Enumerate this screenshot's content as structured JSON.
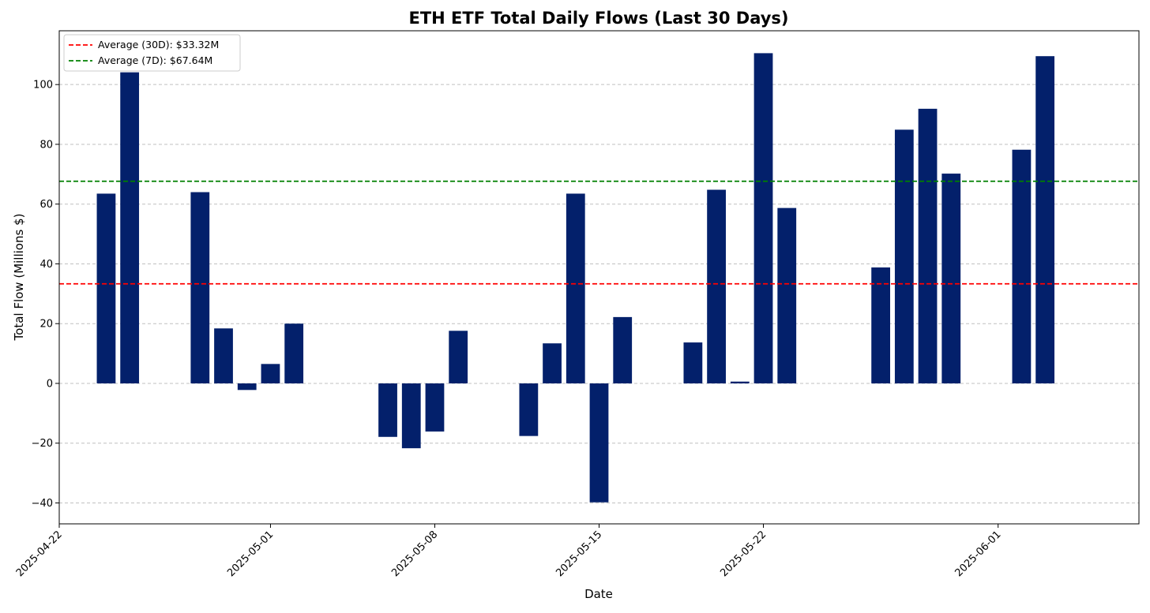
{
  "chart_data": {
    "type": "bar",
    "title": "ETH ETF Total Daily Flows (Last 30 Days)",
    "xlabel": "Date",
    "ylabel": "Total Flow (Millions $)",
    "xlim": [
      "2025-04-22",
      "2025-06-07"
    ],
    "ylim": [
      -47,
      118
    ],
    "yticks": [
      -40,
      -20,
      0,
      20,
      40,
      60,
      80,
      100
    ],
    "xticks": [
      "2025-04-22",
      "2025-05-01",
      "2025-05-08",
      "2025-05-15",
      "2025-05-22",
      "2025-06-01"
    ],
    "grid": "horizontal dashed",
    "bar_color": "#03206b",
    "series": [
      {
        "x": [
          "2025-04-24",
          "2025-04-25",
          "2025-04-28",
          "2025-04-29",
          "2025-04-30",
          "2025-05-01",
          "2025-05-02",
          "2025-05-06",
          "2025-05-07",
          "2025-05-08",
          "2025-05-09",
          "2025-05-12",
          "2025-05-13",
          "2025-05-14",
          "2025-05-15",
          "2025-05-16",
          "2025-05-19",
          "2025-05-20",
          "2025-05-21",
          "2025-05-22",
          "2025-05-23",
          "2025-05-27",
          "2025-05-28",
          "2025-05-29",
          "2025-05-30",
          "2025-06-02",
          "2025-06-03"
        ],
        "values": [
          63.5,
          104.1,
          64.0,
          18.4,
          -2.2,
          6.5,
          20.0,
          -17.9,
          -21.7,
          -16.1,
          17.6,
          -17.6,
          13.4,
          63.5,
          -39.8,
          22.2,
          13.7,
          64.8,
          0.6,
          110.5,
          58.7,
          38.8,
          84.9,
          91.9,
          70.2,
          78.2,
          109.5
        ]
      }
    ],
    "reference_lines": [
      {
        "label": "Average (30D): $33.32M",
        "value": 33.32,
        "color": "#ff0000",
        "style": "dashed"
      },
      {
        "label": "Average (7D): $67.64M",
        "value": 67.64,
        "color": "#008000",
        "style": "dashed"
      }
    ],
    "legend_position": "top-left"
  }
}
